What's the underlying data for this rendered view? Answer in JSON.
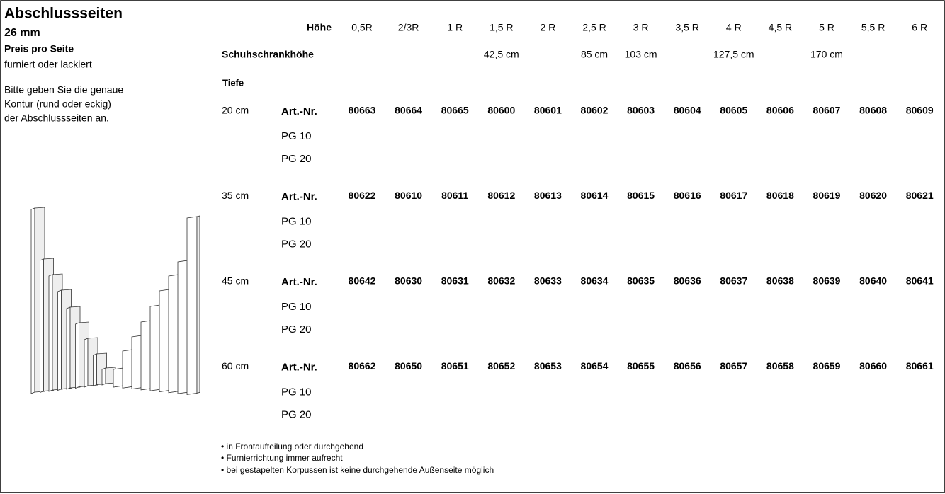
{
  "header": {
    "title": "Abschlussseiten",
    "subtitle": "26 mm",
    "price": "Preis pro Seite",
    "finish": "furniert oder lackiert",
    "note": [
      "Bitte geben Sie die genaue",
      "Kontur (rund oder eckig)",
      "der Abschlussseiten an."
    ]
  },
  "table": {
    "height_label": "Höhe",
    "heights": [
      "0,5R",
      "2/3R",
      "1 R",
      "1,5 R",
      "2 R",
      "2,5 R",
      "3 R",
      "3,5 R",
      "4 R",
      "4,5 R",
      "5 R",
      "5,5 R",
      "6 R"
    ],
    "shoe_label": "Schuhschrankhöhe",
    "shoe_heights": [
      null,
      null,
      null,
      "42,5 cm",
      null,
      "85 cm",
      "103 cm",
      null,
      "127,5 cm",
      null,
      "170 cm",
      null,
      null
    ],
    "depth_label": "Tiefe",
    "groups": [
      {
        "depth": "20 cm",
        "article_label": "Art.-Nr.",
        "articles": [
          80663,
          80664,
          80665,
          80600,
          80601,
          80602,
          80603,
          80604,
          80605,
          80606,
          80607,
          80608,
          80609
        ],
        "price_groups": [
          "PG 10",
          "PG 20"
        ]
      },
      {
        "depth": "35 cm",
        "article_label": "Art.-Nr.",
        "articles": [
          80622,
          80610,
          80611,
          80612,
          80613,
          80614,
          80615,
          80616,
          80617,
          80618,
          80619,
          80620,
          80621
        ],
        "price_groups": [
          "PG 10",
          "PG 20"
        ]
      },
      {
        "depth": "45 cm",
        "article_label": "Art.-Nr.",
        "articles": [
          80642,
          80630,
          80631,
          80632,
          80633,
          80634,
          80635,
          80636,
          80637,
          80638,
          80639,
          80640,
          80641
        ],
        "price_groups": [
          "PG 10",
          "PG 20"
        ]
      },
      {
        "depth": "60 cm",
        "article_label": "Art.-Nr.",
        "articles": [
          80662,
          80650,
          80651,
          80652,
          80653,
          80654,
          80655,
          80656,
          80657,
          80658,
          80659,
          80660,
          80661
        ],
        "price_groups": [
          "PG 10",
          "PG 20"
        ]
      }
    ]
  },
  "footnotes": [
    "• in Frontaufteilung oder durchgehend",
    "• Furnierrichtung immer aufrecht",
    "• bei gestapelten Korpussen ist keine durchgehende Außenseite möglich"
  ]
}
